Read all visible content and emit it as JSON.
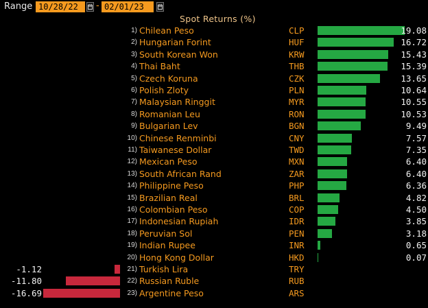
{
  "range": {
    "label": "Range",
    "start_date": "10/28/22",
    "separator": "-",
    "end_date": "02/01/23"
  },
  "colors": {
    "background": "#000000",
    "orange": "#f59a1f",
    "positive_bar": "#25a843",
    "negative_bar": "#c8283c"
  },
  "icons": {
    "date_picker": "calendar-icon"
  },
  "chart_data": {
    "type": "bar",
    "orientation": "horizontal",
    "title": "Spot Returns (%)",
    "rows": [
      {
        "rank": "1)",
        "name": "Chilean Peso",
        "code": "CLP",
        "value": 19.08,
        "label": "19.08"
      },
      {
        "rank": "2)",
        "name": "Hungarian Forint",
        "code": "HUF",
        "value": 16.72,
        "label": "16.72"
      },
      {
        "rank": "3)",
        "name": "South Korean Won",
        "code": "KRW",
        "value": 15.43,
        "label": "15.43"
      },
      {
        "rank": "4)",
        "name": "Thai Baht",
        "code": "THB",
        "value": 15.39,
        "label": "15.39"
      },
      {
        "rank": "5)",
        "name": "Czech Koruna",
        "code": "CZK",
        "value": 13.65,
        "label": "13.65"
      },
      {
        "rank": "6)",
        "name": "Polish Zloty",
        "code": "PLN",
        "value": 10.64,
        "label": "10.64"
      },
      {
        "rank": "7)",
        "name": "Malaysian Ringgit",
        "code": "MYR",
        "value": 10.55,
        "label": "10.55"
      },
      {
        "rank": "8)",
        "name": "Romanian Leu",
        "code": "RON",
        "value": 10.53,
        "label": "10.53"
      },
      {
        "rank": "9)",
        "name": "Bulgarian Lev",
        "code": "BGN",
        "value": 9.49,
        "label": "9.49"
      },
      {
        "rank": "10)",
        "name": "Chinese Renminbi",
        "code": "CNY",
        "value": 7.57,
        "label": "7.57"
      },
      {
        "rank": "11)",
        "name": "Taiwanese Dollar",
        "code": "TWD",
        "value": 7.35,
        "label": "7.35"
      },
      {
        "rank": "12)",
        "name": "Mexican Peso",
        "code": "MXN",
        "value": 6.4,
        "label": "6.40"
      },
      {
        "rank": "13)",
        "name": "South African Rand",
        "code": "ZAR",
        "value": 6.4,
        "label": "6.40"
      },
      {
        "rank": "14)",
        "name": "Philippine Peso",
        "code": "PHP",
        "value": 6.36,
        "label": "6.36"
      },
      {
        "rank": "15)",
        "name": "Brazilian Real",
        "code": "BRL",
        "value": 4.82,
        "label": "4.82"
      },
      {
        "rank": "16)",
        "name": "Colombian Peso",
        "code": "COP",
        "value": 4.5,
        "label": "4.50"
      },
      {
        "rank": "17)",
        "name": "Indonesian Rupiah",
        "code": "IDR",
        "value": 3.85,
        "label": "3.85"
      },
      {
        "rank": "18)",
        "name": "Peruvian Sol",
        "code": "PEN",
        "value": 3.18,
        "label": "3.18"
      },
      {
        "rank": "19)",
        "name": "Indian Rupee",
        "code": "INR",
        "value": 0.65,
        "label": "0.65"
      },
      {
        "rank": "20)",
        "name": "Hong Kong Dollar",
        "code": "HKD",
        "value": 0.07,
        "label": "0.07"
      },
      {
        "rank": "21)",
        "name": "Turkish Lira",
        "code": "TRY",
        "value": -1.12,
        "label": "-1.12"
      },
      {
        "rank": "22)",
        "name": "Russian Ruble",
        "code": "RUB",
        "value": -11.8,
        "label": "-11.80"
      },
      {
        "rank": "23)",
        "name": "Argentine Peso",
        "code": "ARS",
        "value": -16.69,
        "label": "-16.69"
      }
    ]
  }
}
